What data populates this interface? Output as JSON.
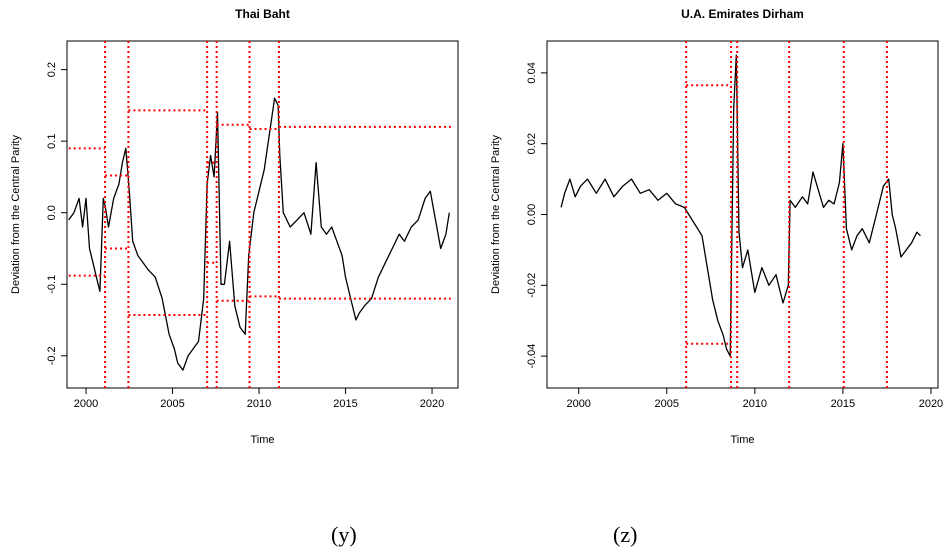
{
  "captions": [
    "(y)",
    "(z)"
  ],
  "colors": {
    "series": "#000000",
    "breaks": "#ff0000",
    "background": "#ffffff"
  },
  "chart_data": [
    {
      "type": "line",
      "title": "Thai Baht",
      "xlabel": "Time",
      "ylabel": "Deviation from the Central Parity",
      "xlim": [
        1998.9,
        2021.5
      ],
      "ylim": [
        -0.245,
        0.24
      ],
      "x_ticks": [
        2000,
        2005,
        2010,
        2015,
        2020
      ],
      "x_tick_labels": [
        "2000",
        "2005",
        "2010",
        "2015",
        "2020"
      ],
      "y_ticks": [
        -0.2,
        -0.1,
        0.0,
        0.1,
        0.2
      ],
      "y_tick_labels": [
        "-0.2",
        "-0.1",
        "0.0",
        "0.1",
        "0.2"
      ],
      "grid": false,
      "series": [
        {
          "x": [
            1999.0,
            1999.3,
            1999.6,
            1999.8,
            2000.0,
            2000.2,
            2000.4,
            2000.6,
            2000.8,
            2001.0,
            2001.1,
            2001.3,
            2001.6,
            2001.9,
            2002.1,
            2002.3,
            2002.5,
            2002.7,
            2003.0,
            2003.3,
            2003.6,
            2004.0,
            2004.4,
            2004.8,
            2005.1,
            2005.3,
            2005.6,
            2005.9,
            2006.2,
            2006.5,
            2006.8,
            2007.0,
            2007.2,
            2007.4,
            2007.6,
            2007.8,
            2008.0,
            2008.3,
            2008.6,
            2008.9,
            2009.2,
            2009.4,
            2009.7,
            2010.0,
            2010.3,
            2010.6,
            2010.9,
            2011.1,
            2011.2,
            2011.4,
            2011.8,
            2012.2,
            2012.6,
            2013.0,
            2013.3,
            2013.6,
            2013.9,
            2014.2,
            2014.5,
            2014.8,
            2015.0,
            2015.3,
            2015.6,
            2015.8,
            2016.1,
            2016.5,
            2016.9,
            2017.3,
            2017.7,
            2018.1,
            2018.4,
            2018.8,
            2019.2,
            2019.6,
            2019.9,
            2020.2,
            2020.5,
            2020.8,
            2021.0
          ],
          "y": [
            -0.01,
            0.0,
            0.02,
            -0.02,
            0.02,
            -0.05,
            -0.07,
            -0.09,
            -0.11,
            0.02,
            0.01,
            -0.02,
            0.02,
            0.04,
            0.07,
            0.09,
            0.03,
            -0.04,
            -0.06,
            -0.07,
            -0.08,
            -0.09,
            -0.12,
            -0.17,
            -0.19,
            -0.21,
            -0.22,
            -0.2,
            -0.19,
            -0.18,
            -0.12,
            0.04,
            0.08,
            0.05,
            0.14,
            -0.1,
            -0.1,
            -0.04,
            -0.13,
            -0.16,
            -0.17,
            -0.06,
            0.0,
            0.03,
            0.06,
            0.11,
            0.16,
            0.15,
            0.08,
            0.0,
            -0.02,
            -0.01,
            0.0,
            -0.03,
            0.07,
            -0.02,
            -0.03,
            -0.02,
            -0.04,
            -0.06,
            -0.09,
            -0.12,
            -0.15,
            -0.14,
            -0.13,
            -0.12,
            -0.09,
            -0.07,
            -0.05,
            -0.03,
            -0.04,
            -0.02,
            -0.01,
            0.02,
            0.03,
            -0.01,
            -0.05,
            -0.03,
            0.0
          ]
        }
      ],
      "vlines": [
        2001.1,
        2002.45,
        2007.0,
        2007.55,
        2009.45,
        2011.15
      ],
      "bands": [
        {
          "x0": 1999.0,
          "x1": 2001.1,
          "lo": -0.088,
          "hi": 0.09
        },
        {
          "x0": 2001.1,
          "x1": 2002.45,
          "lo": -0.05,
          "hi": 0.052
        },
        {
          "x0": 2002.45,
          "x1": 2007.0,
          "lo": -0.143,
          "hi": 0.143
        },
        {
          "x0": 2007.0,
          "x1": 2007.55,
          "lo": -0.07,
          "hi": 0.07
        },
        {
          "x0": 2007.55,
          "x1": 2009.45,
          "lo": -0.123,
          "hi": 0.123
        },
        {
          "x0": 2009.45,
          "x1": 2011.15,
          "lo": -0.117,
          "hi": 0.117
        },
        {
          "x0": 2011.15,
          "x1": 2021.2,
          "lo": -0.12,
          "hi": 0.12
        }
      ]
    },
    {
      "type": "line",
      "title": "U.A. Emirates Dirham",
      "xlabel": "Time",
      "ylabel": "Deviation from the Central Parity",
      "xlim": [
        1998.2,
        2020.4
      ],
      "ylim": [
        -0.049,
        0.049
      ],
      "x_ticks": [
        2000,
        2005,
        2010,
        2015,
        2020
      ],
      "x_tick_labels": [
        "2000",
        "2005",
        "2010",
        "2015",
        "2020"
      ],
      "y_ticks": [
        -0.04,
        -0.02,
        0.0,
        0.02,
        0.04
      ],
      "y_tick_labels": [
        "-0.04",
        "-0.02",
        "0.00",
        "0.02",
        "0.04"
      ],
      "grid": false,
      "series": [
        {
          "x": [
            1999.0,
            1999.2,
            1999.5,
            1999.8,
            2000.1,
            2000.5,
            2001.0,
            2001.5,
            2002.0,
            2002.5,
            2003.0,
            2003.5,
            2004.0,
            2004.5,
            2005.0,
            2005.5,
            2006.0,
            2006.5,
            2007.0,
            2007.3,
            2007.6,
            2007.9,
            2008.2,
            2008.4,
            2008.6,
            2008.8,
            2008.95,
            2009.1,
            2009.3,
            2009.6,
            2010.0,
            2010.4,
            2010.8,
            2011.2,
            2011.6,
            2011.9,
            2012.0,
            2012.3,
            2012.7,
            2013.0,
            2013.3,
            2013.6,
            2013.9,
            2014.2,
            2014.5,
            2014.8,
            2015.0,
            2015.2,
            2015.5,
            2015.8,
            2016.1,
            2016.5,
            2016.9,
            2017.3,
            2017.6,
            2017.8,
            2018.0,
            2018.3,
            2018.6,
            2018.9,
            2019.2,
            2019.4
          ],
          "y": [
            0.002,
            0.006,
            0.01,
            0.005,
            0.008,
            0.01,
            0.006,
            0.01,
            0.005,
            0.008,
            0.01,
            0.006,
            0.007,
            0.004,
            0.006,
            0.003,
            0.002,
            -0.002,
            -0.006,
            -0.015,
            -0.024,
            -0.03,
            -0.034,
            -0.038,
            -0.04,
            0.03,
            0.045,
            -0.005,
            -0.015,
            -0.01,
            -0.022,
            -0.015,
            -0.02,
            -0.017,
            -0.025,
            -0.02,
            0.004,
            0.002,
            0.005,
            0.003,
            0.012,
            0.007,
            0.002,
            0.004,
            0.003,
            0.009,
            0.02,
            -0.004,
            -0.01,
            -0.006,
            -0.004,
            -0.008,
            0.0,
            0.008,
            0.01,
            0.0,
            -0.004,
            -0.012,
            -0.01,
            -0.008,
            -0.005,
            -0.006
          ]
        }
      ],
      "vlines": [
        2006.1,
        2008.65,
        2009.0,
        2011.95,
        2015.05,
        2017.5
      ],
      "bands": [
        {
          "x0": 2006.1,
          "x1": 2008.65,
          "lo": -0.0365,
          "hi": 0.0365
        }
      ]
    }
  ]
}
